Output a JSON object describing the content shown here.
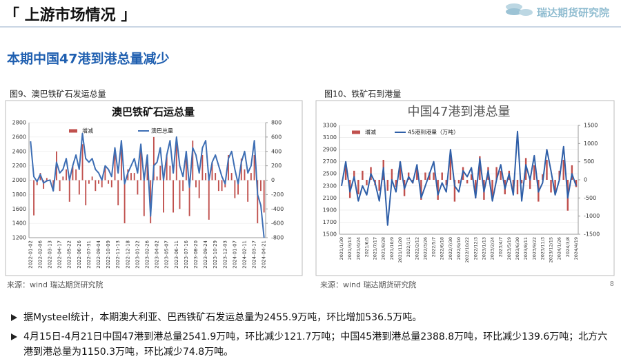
{
  "header": {
    "title": "「 上游市场情况 」",
    "logo": "瑞达期货研究院",
    "subtitle": "本期中国47港到港总量减少",
    "page": "8"
  },
  "captions": [
    "图9、澳巴铁矿石发运总量",
    "图10、铁矿石到港量"
  ],
  "sources": [
    "来源：wind   瑞达期货研究院",
    "来源：wind   瑞达期货研究院"
  ],
  "bullets": [
    "据Mysteel统计，本期澳大利亚、巴西铁矿石发运总量为2455.9万吨，环比增加536.5万吨。",
    "4月15日-4月21日中国47港到港总量2541.9万吨，环比减少121.7万吨；中国45港到港总量2388.8万吨，环比减少139.6万吨；北方六港到港总量为1150.3万吨，环比减少74.8万吨。"
  ],
  "chart_data": [
    {
      "type": "bar-line",
      "title": "澳巴铁矿石运总量",
      "categories": [
        "2022-01-02",
        null,
        null,
        "2022-02-06",
        null,
        null,
        "2022-03-13",
        null,
        null,
        "2022-04-17",
        null,
        null,
        "2022-05-22",
        null,
        null,
        "2022-06-26",
        null,
        null,
        "2022-07-31",
        null,
        null,
        "2022-09-04",
        null,
        null,
        "2022-10-09",
        null,
        null,
        "2022-11-13",
        null,
        null,
        "2022-12-18",
        null,
        null,
        "2023-01-22",
        null,
        null,
        "2023-02-26",
        null,
        null,
        "2023-04-02",
        null,
        null,
        "2023-05-07",
        null,
        null,
        "2023-06-11",
        null,
        null,
        "2023-07-16",
        null,
        null,
        "2023-08-20",
        null,
        null,
        "2023-09-24",
        null,
        null,
        "2023-10-29",
        null,
        null,
        "2023-12-03",
        null,
        null,
        "2024-01-07",
        null,
        null,
        "2024-02-11",
        null,
        null,
        "2024-03-17",
        null,
        null,
        "2024-04-21"
      ],
      "series": [
        {
          "name": "增减",
          "color": "#c0504d",
          "kind": "bar",
          "axis": "y2",
          "values": [
            0,
            -490,
            -70,
            100,
            -120,
            30,
            10,
            -150,
            400,
            -150,
            50,
            150,
            -300,
            200,
            150,
            -200,
            500,
            -350,
            -50,
            50,
            -150,
            -50,
            -100,
            200,
            -50,
            -100,
            400,
            -350,
            450,
            -600,
            150,
            100,
            100,
            -200,
            400,
            -500,
            350,
            -600,
            600,
            50,
            200,
            -450,
            350,
            200,
            -450,
            500,
            -400,
            -150,
            350,
            -500,
            550,
            -100,
            -250,
            350,
            100,
            -550,
            250,
            100,
            -150,
            -150,
            -100,
            350,
            100,
            -250,
            -200,
            300,
            150,
            -300,
            100,
            350,
            -600,
            -150,
            -450
          ]
        },
        {
          "name": "澳巴总量",
          "color": "#3d6eb4",
          "kind": "line",
          "values": [
            2540,
            2050,
            1980,
            2080,
            1960,
            1990,
            2000,
            1850,
            2250,
            2100,
            2150,
            2300,
            2000,
            2200,
            2350,
            2150,
            2650,
            2300,
            2250,
            2300,
            2150,
            2100,
            2000,
            2200,
            2150,
            2050,
            2450,
            2100,
            2550,
            1950,
            2100,
            2200,
            2300,
            2100,
            2500,
            2000,
            2350,
            1500,
            2200,
            2250,
            2450,
            2000,
            2350,
            2550,
            2100,
            2600,
            2200,
            2050,
            2400,
            1900,
            2450,
            2350,
            2100,
            2450,
            2550,
            2000,
            2250,
            2350,
            2200,
            2050,
            1950,
            2300,
            2400,
            2150,
            1950,
            2250,
            2400,
            2100,
            2200,
            2550,
            1800,
            1650,
            1200
          ]
        }
      ],
      "ylim": [
        1200,
        2800
      ],
      "yticks": [
        1200,
        1400,
        1600,
        1800,
        2000,
        2200,
        2400,
        2600,
        2800
      ],
      "y2lim": [
        -800,
        800
      ],
      "y2ticks": [
        -800,
        -600,
        -400,
        -200,
        0,
        200,
        400,
        600,
        800
      ]
    },
    {
      "type": "bar-line",
      "title": "中国47港到港总量",
      "categories": [
        "2021/1/30",
        null,
        "2021/3/13",
        null,
        "2021/4/24",
        null,
        "2021/6/5",
        null,
        "2021/7/17",
        null,
        "2021/8/28",
        null,
        "2021/10/9",
        null,
        "2021/11/20",
        null,
        "2022/1/1",
        null,
        "2022/2/12",
        null,
        "2022/3/26",
        null,
        "2022/5/7",
        null,
        "2022/6/18",
        null,
        "2022/7/30",
        null,
        "2022/9/10",
        null,
        "2022/10/22",
        null,
        "2022/12/3",
        null,
        "2023/1/13",
        null,
        "2023/2/24",
        null,
        "2023/4/7",
        null,
        "2023/5/19",
        null,
        "2023/6/30",
        null,
        "2023/8/11",
        null,
        "2023/9/22",
        null,
        "2023/11/3",
        null,
        "2023/12/15",
        null,
        "2024/1/26",
        null,
        "2024/3/8",
        null,
        "2024/4/19"
      ],
      "series": [
        {
          "name": "增减",
          "color": "#c0504d",
          "kind": "bar",
          "axis": "y2",
          "values": [
            0,
            400,
            -500,
            250,
            -400,
            250,
            -150,
            350,
            -150,
            -300,
            550,
            -300,
            300,
            -200,
            500,
            -450,
            200,
            -100,
            300,
            -550,
            200,
            200,
            200,
            -550,
            200,
            -150,
            700,
            -600,
            -100,
            350,
            -100,
            150,
            -500,
            650,
            -550,
            350,
            -500,
            350,
            250,
            -400,
            250,
            -350,
            -400,
            -100,
            600,
            -250,
            400,
            -600,
            150,
            550,
            -350,
            -400,
            250,
            550,
            -850,
            400,
            -200
          ]
        },
        {
          "name": "45港到港量（万吨）",
          "color": "#2f5fa8",
          "kind": "line",
          "values": [
            2300,
            2700,
            2200,
            2450,
            2050,
            2300,
            2150,
            2500,
            2350,
            2050,
            2600,
            1650,
            2400,
            2200,
            2700,
            2250,
            2450,
            2350,
            2650,
            2100,
            2300,
            2500,
            2700,
            2150,
            2350,
            2200,
            2900,
            2300,
            2200,
            2550,
            2450,
            2600,
            2100,
            2750,
            2200,
            2550,
            2050,
            2400,
            2650,
            2250,
            2500,
            2150,
            3200,
            2050,
            2650,
            2400,
            2800,
            2200,
            2350,
            2900,
            2550,
            2150,
            2400,
            2950,
            2100,
            2500,
            2300
          ]
        }
      ],
      "ylim": [
        1500,
        3300
      ],
      "yticks": [
        1500,
        1700,
        1900,
        2100,
        2300,
        2500,
        2700,
        2900,
        3100,
        3300
      ],
      "y2lim": [
        -1500,
        1500
      ],
      "y2ticks": [
        -1500,
        -1000,
        -500,
        0,
        500,
        1000,
        1500
      ]
    }
  ]
}
